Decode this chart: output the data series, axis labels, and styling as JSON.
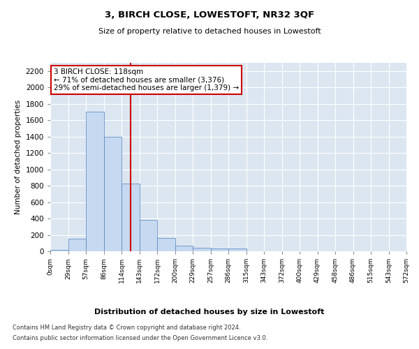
{
  "title": "3, BIRCH CLOSE, LOWESTOFT, NR32 3QF",
  "subtitle": "Size of property relative to detached houses in Lowestoft",
  "xlabel": "Distribution of detached houses by size in Lowestoft",
  "ylabel": "Number of detached properties",
  "bar_values": [
    20,
    155,
    1700,
    1400,
    830,
    380,
    165,
    65,
    40,
    30,
    30,
    0,
    0,
    0,
    0,
    0,
    0,
    0
  ],
  "tick_labels": [
    "0sqm",
    "29sqm",
    "57sqm",
    "86sqm",
    "114sqm",
    "143sqm",
    "172sqm",
    "200sqm",
    "229sqm",
    "257sqm",
    "286sqm",
    "315sqm",
    "343sqm",
    "372sqm",
    "400sqm",
    "429sqm",
    "458sqm",
    "486sqm",
    "515sqm",
    "543sqm",
    "572sqm"
  ],
  "ylim": [
    0,
    2300
  ],
  "yticks": [
    0,
    200,
    400,
    600,
    800,
    1000,
    1200,
    1400,
    1600,
    1800,
    2000,
    2200
  ],
  "property_line_x": 4.0,
  "annotation_text": "3 BIRCH CLOSE: 118sqm\n← 71% of detached houses are smaller (3,376)\n29% of semi-detached houses are larger (1,379) →",
  "annotation_box_color": "#ffffff",
  "annotation_border_color": "#cc0000",
  "vline_color": "#cc0000",
  "plot_bg_color": "#dce6f1",
  "grid_color": "#ffffff",
  "footer_line1": "Contains HM Land Registry data © Crown copyright and database right 2024.",
  "footer_line2": "Contains public sector information licensed under the Open Government Licence v3.0.",
  "bar_face_color": "#c6d9f0",
  "bar_edge_color": "#4f81bd"
}
